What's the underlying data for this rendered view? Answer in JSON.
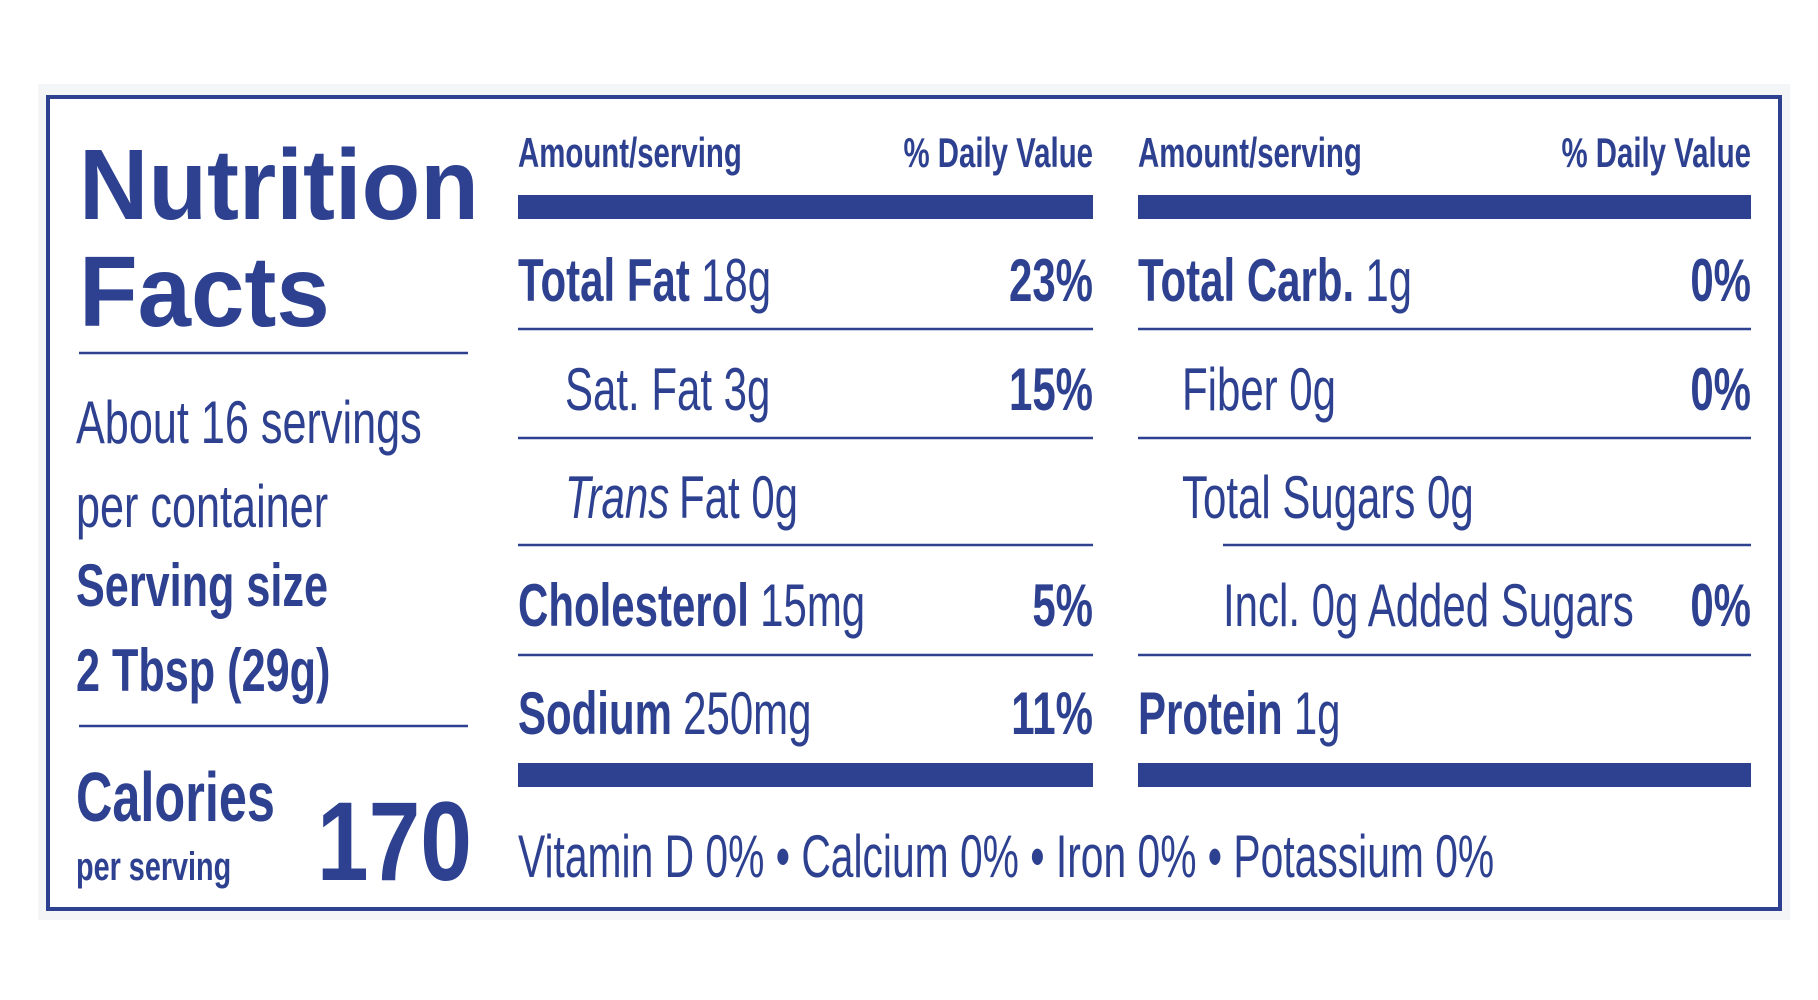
{
  "title": {
    "line1": "Nutrition",
    "line2": "Facts"
  },
  "servings": [
    "About 16 servings",
    "per container"
  ],
  "serving_size": {
    "label": "Serving size",
    "value": "2 Tbsp (29g)"
  },
  "calories": {
    "label": "Calories",
    "sublabel": "per serving",
    "value": 170
  },
  "columns": [
    {
      "header": {
        "amount": "Amount/serving",
        "dv": "% Daily Value"
      },
      "rows": [
        {
          "name": "Total Fat",
          "amount": "18g",
          "dv": "23%"
        },
        {
          "indent": 1,
          "text": "Sat. Fat 3g",
          "dv": "15%"
        },
        {
          "indent": 1,
          "italic": "Trans",
          "text": "Fat 0g"
        },
        {
          "name": "Cholesterol",
          "amount": "15mg",
          "dv": "5%"
        },
        {
          "name": "Sodium",
          "amount": "250mg",
          "dv": "11%"
        }
      ]
    },
    {
      "header": {
        "amount": "Amount/serving",
        "dv": "% Daily Value"
      },
      "rows": [
        {
          "name": "Total Carb.",
          "amount": "1g",
          "dv": "0%"
        },
        {
          "indent": 1,
          "text": "Fiber 0g",
          "dv": "0%"
        },
        {
          "indent": 1,
          "text": "Total Sugars 0g"
        },
        {
          "indent": 2,
          "text": "Incl. 0g Added Sugars",
          "dv": "0%"
        },
        {
          "name": "Protein",
          "amount": "1g"
        }
      ]
    }
  ],
  "vitamins": "Vitamin D 0% • Calcium 0% • Iron 0% • Potassium 0%"
}
